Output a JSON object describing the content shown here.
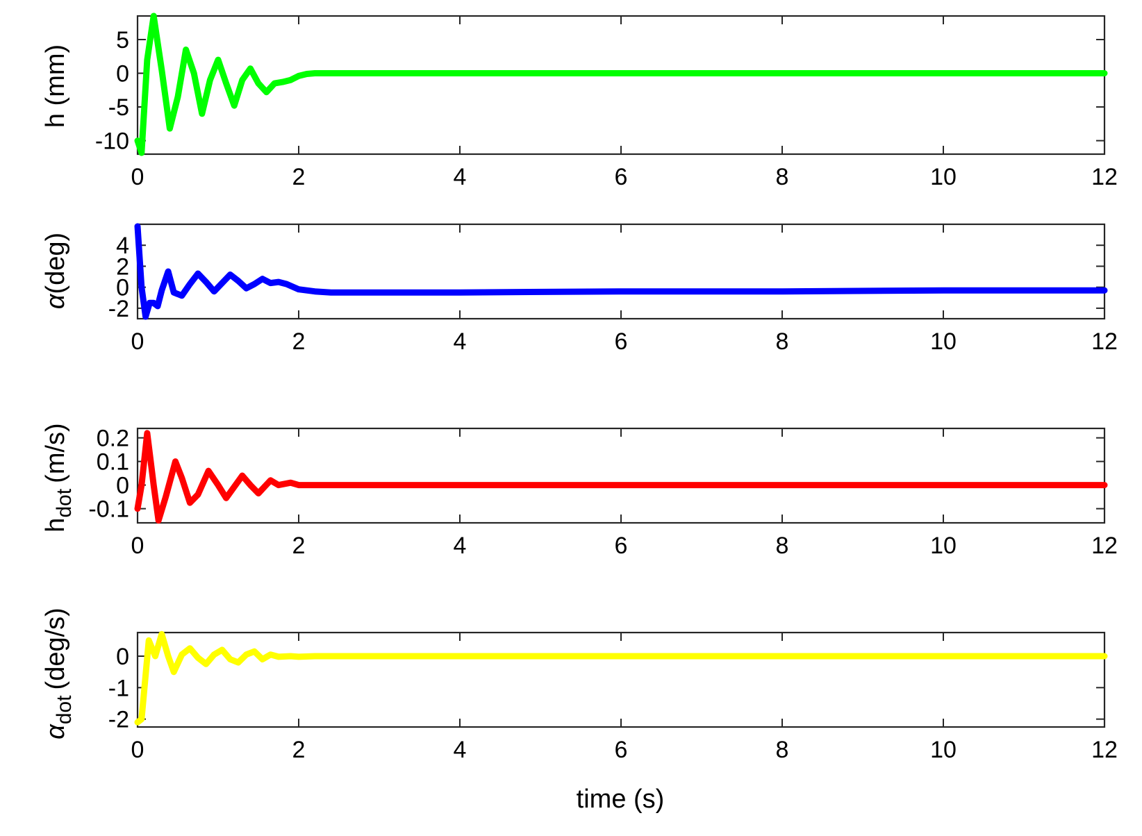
{
  "chart_data": [
    {
      "type": "line",
      "ylabel": "h (mm)",
      "xlabel": "",
      "xlim": [
        0,
        12
      ],
      "ylim": [
        -12,
        8.5
      ],
      "x_ticks": [
        0,
        2,
        4,
        6,
        8,
        10,
        12
      ],
      "y_ticks": [
        -10,
        -5,
        0,
        5
      ],
      "grid": false,
      "series": [
        {
          "color": "#00ff00",
          "x": [
            0,
            0.05,
            0.12,
            0.2,
            0.3,
            0.4,
            0.5,
            0.6,
            0.7,
            0.8,
            0.9,
            1.0,
            1.1,
            1.2,
            1.3,
            1.4,
            1.5,
            1.6,
            1.7,
            1.8,
            1.9,
            2.0,
            2.1,
            2.2,
            2.4,
            2.7,
            3.0,
            4.0,
            6.0,
            8.0,
            10.0,
            12.0
          ],
          "y": [
            -10,
            -11.8,
            2.0,
            8.5,
            0.5,
            -8.2,
            -3.5,
            3.5,
            0,
            -6.0,
            -1.0,
            2.0,
            -1.5,
            -4.8,
            -1.0,
            0.7,
            -1.5,
            -2.8,
            -1.5,
            -1.3,
            -1.0,
            -0.4,
            -0.1,
            0,
            0,
            0,
            0,
            0,
            0,
            0,
            0,
            0
          ]
        }
      ]
    },
    {
      "type": "line",
      "ylabel": "α(deg)",
      "xlabel": "",
      "xlim": [
        0,
        12
      ],
      "ylim": [
        -3,
        6
      ],
      "x_ticks": [
        0,
        2,
        4,
        6,
        8,
        10,
        12
      ],
      "y_ticks": [
        -2,
        0,
        2,
        4
      ],
      "grid": false,
      "series": [
        {
          "color": "#0000ff",
          "x": [
            0,
            0.05,
            0.1,
            0.15,
            0.2,
            0.25,
            0.3,
            0.38,
            0.45,
            0.55,
            0.65,
            0.75,
            0.85,
            0.95,
            1.05,
            1.15,
            1.25,
            1.35,
            1.45,
            1.55,
            1.65,
            1.75,
            1.85,
            2.0,
            2.2,
            2.4,
            3.0,
            4.0,
            6.0,
            8.0,
            10.0,
            12.0
          ],
          "y": [
            5.8,
            0,
            -2.8,
            -1.5,
            -1.5,
            -1.8,
            -0.3,
            1.5,
            -0.5,
            -0.8,
            0.3,
            1.3,
            0.5,
            -0.4,
            0.4,
            1.2,
            0.6,
            -0.1,
            0.3,
            0.8,
            0.4,
            0.5,
            0.3,
            -0.2,
            -0.4,
            -0.5,
            -0.5,
            -0.5,
            -0.4,
            -0.4,
            -0.3,
            -0.3
          ]
        }
      ]
    },
    {
      "type": "line",
      "ylabel": "h_dot (m/s)",
      "xlabel": "",
      "xlim": [
        0,
        12
      ],
      "ylim": [
        -0.16,
        0.24
      ],
      "x_ticks": [
        0,
        2,
        4,
        6,
        8,
        10,
        12
      ],
      "y_ticks": [
        -0.1,
        0,
        0.1,
        0.2
      ],
      "grid": false,
      "series": [
        {
          "color": "#ff0000",
          "x": [
            0,
            0.05,
            0.12,
            0.2,
            0.26,
            0.35,
            0.47,
            0.55,
            0.65,
            0.75,
            0.88,
            1.0,
            1.1,
            1.3,
            1.4,
            1.5,
            1.65,
            1.75,
            1.9,
            2.0,
            2.2,
            3.0,
            4.0,
            6.0,
            8.0,
            10.0,
            12.0
          ],
          "y": [
            -0.1,
            0,
            0.22,
            0,
            -0.15,
            -0.05,
            0.1,
            0.03,
            -0.075,
            -0.04,
            0.06,
            0,
            -0.055,
            0.04,
            0.0,
            -0.035,
            0.02,
            0.0,
            0.01,
            0.0,
            0,
            0,
            0,
            0,
            0,
            0,
            0
          ]
        }
      ]
    },
    {
      "type": "line",
      "ylabel": "α_dot (deg/s)",
      "xlabel": "time (s)",
      "xlim": [
        0,
        12
      ],
      "ylim": [
        -2.25,
        0.75
      ],
      "x_ticks": [
        0,
        2,
        4,
        6,
        8,
        10,
        12
      ],
      "y_ticks": [
        -2,
        -1,
        0
      ],
      "grid": false,
      "series": [
        {
          "color": "#ffff00",
          "x": [
            0,
            0.05,
            0.14,
            0.22,
            0.3,
            0.38,
            0.45,
            0.55,
            0.65,
            0.75,
            0.85,
            0.95,
            1.05,
            1.15,
            1.25,
            1.35,
            1.45,
            1.55,
            1.65,
            1.75,
            1.9,
            2.0,
            2.2,
            3.0,
            4.0,
            6.0,
            8.0,
            10.0,
            12.0
          ],
          "y": [
            -2.1,
            -2.0,
            0.5,
            0,
            0.7,
            0,
            -0.5,
            0.05,
            0.25,
            -0.05,
            -0.25,
            0.05,
            0.2,
            -0.1,
            -0.2,
            0.05,
            0.15,
            -0.1,
            0.05,
            -0.02,
            0.0,
            -0.02,
            0,
            0,
            0,
            0,
            0,
            0,
            0
          ]
        }
      ]
    }
  ],
  "axis_text": {
    "p0_y_main": "h (mm)",
    "p1_y_alpha": "α",
    "p1_y_rest": "(deg)",
    "p2_y_main": "h",
    "p2_y_sub": "dot",
    "p2_y_unit": "(m/s)",
    "p3_y_alpha": "α",
    "p3_y_sub": "dot",
    "p3_y_unit": "(deg/s)",
    "x_label": "time (s)"
  }
}
